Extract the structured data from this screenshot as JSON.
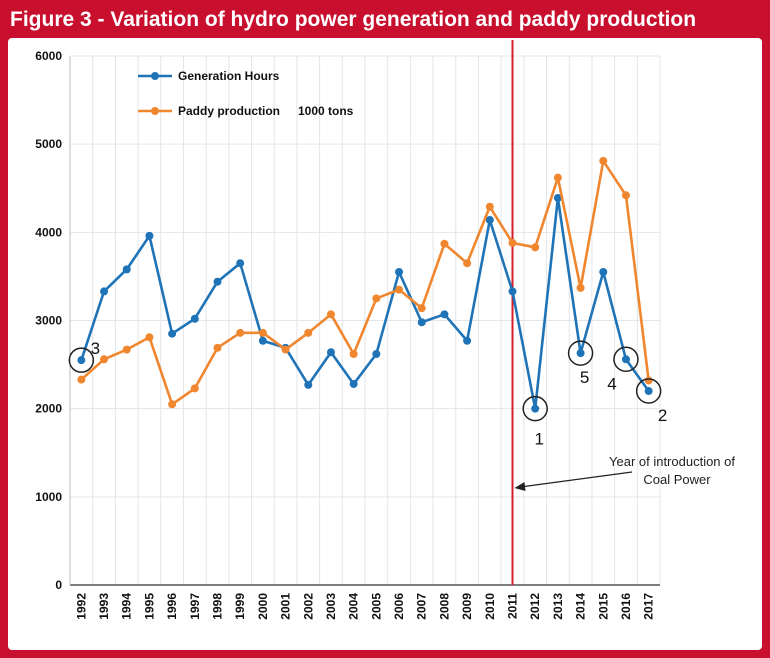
{
  "figure": {
    "title": "Figure 3 - Variation of hydro power generation and paddy production",
    "colors": {
      "frame": "#c8102e",
      "generation": "#1f73b7",
      "paddy": "#f0862e",
      "marker_line": "#d51e2a",
      "grid": "#e3e6ea"
    }
  },
  "chart_data": {
    "type": "line",
    "title": "Figure 3 - Variation of hydro power generation and paddy production",
    "xlabel": "",
    "ylabel": "",
    "ylim": [
      0,
      6000
    ],
    "y_ticks": [
      "0",
      "1000",
      "2000",
      "3000",
      "4000",
      "5000",
      "6000"
    ],
    "categories": [
      "1992",
      "1993",
      "1994",
      "1995",
      "1996",
      "1997",
      "1998",
      "1999",
      "2000",
      "2001",
      "2002",
      "2003",
      "2004",
      "2005",
      "2006",
      "2007",
      "2008",
      "2009",
      "2010",
      "2011",
      "2012",
      "2013",
      "2014",
      "2015",
      "2016",
      "2017"
    ],
    "grid": true,
    "legend_position": "top-left",
    "series": [
      {
        "name": "Generation Hours",
        "color": "#1f73b7",
        "values": [
          2550,
          3330,
          3580,
          3960,
          2850,
          3020,
          3440,
          3650,
          2770,
          2690,
          2270,
          2640,
          2280,
          2620,
          3550,
          2980,
          3070,
          2770,
          4140,
          3330,
          2000,
          4390,
          2630,
          3550,
          2560,
          2200
        ]
      },
      {
        "name": "Paddy production",
        "color": "#f0862e",
        "values": [
          2330,
          2560,
          2670,
          2810,
          2050,
          2230,
          2690,
          2860,
          2860,
          2670,
          2860,
          3070,
          2620,
          3250,
          3350,
          3140,
          3870,
          3650,
          4290,
          3880,
          3830,
          4620,
          3370,
          4810,
          4420,
          2320
        ]
      }
    ],
    "legend_extra": "1000 tons",
    "circled_points": [
      {
        "label": "3",
        "category": "1992",
        "value": 2550
      },
      {
        "label": "1",
        "category": "2012",
        "value": 2000
      },
      {
        "label": "5",
        "category": "2014",
        "value": 2630
      },
      {
        "label": "4",
        "category": "2016",
        "value": 2560
      },
      {
        "label": "2",
        "category": "2017",
        "value": 2200
      }
    ],
    "vertical_marker": {
      "category": "2011",
      "label_line1": "Year of introduction of",
      "label_line2": "Coal Power"
    }
  }
}
